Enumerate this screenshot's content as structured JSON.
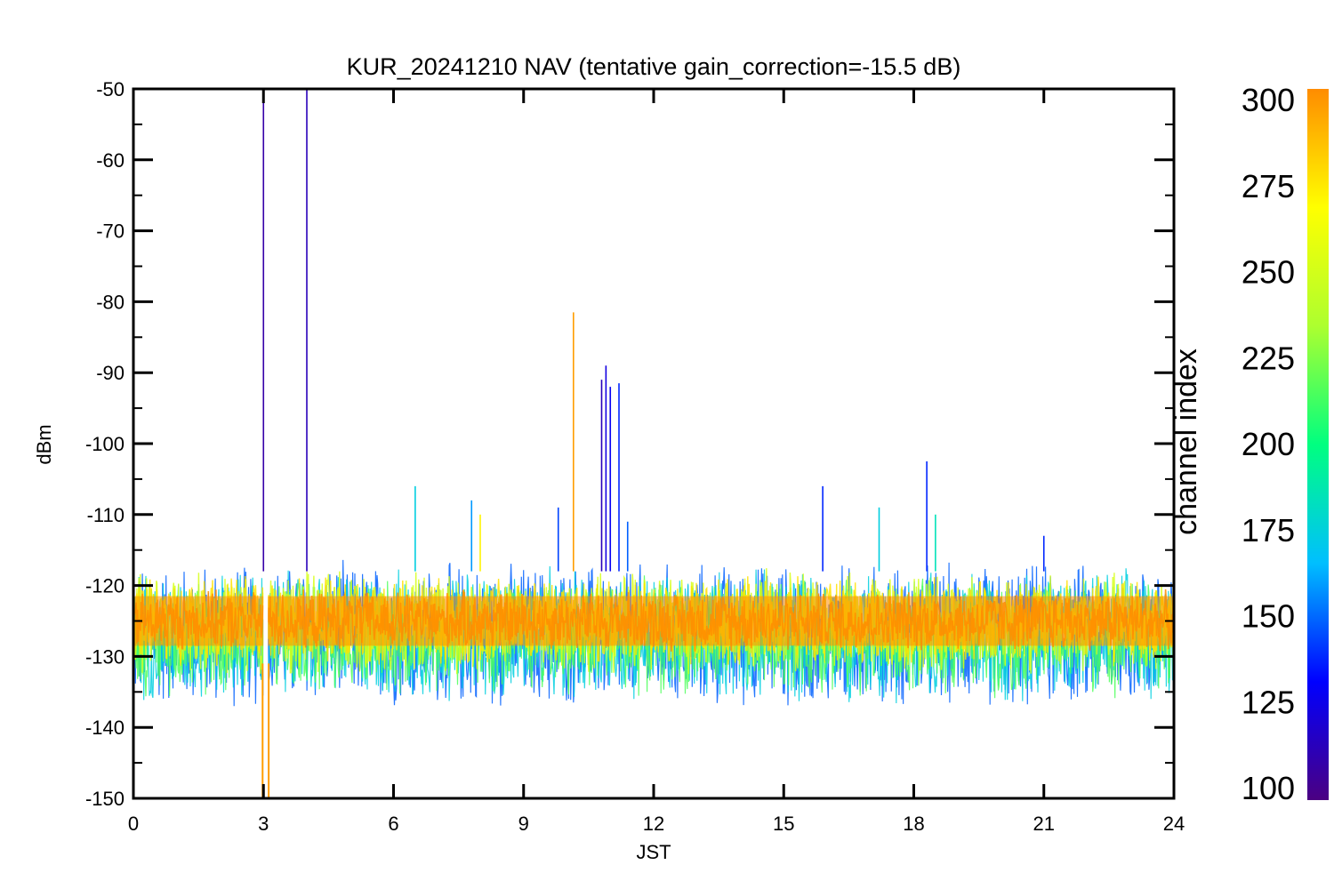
{
  "chart_data": {
    "type": "line",
    "title": "KUR_20241210 NAV (tentative gain_correction=-15.5 dB)",
    "xlabel": "JST",
    "ylabel": "dBm",
    "xlim": [
      0,
      24
    ],
    "ylim": [
      -150,
      -50
    ],
    "x_ticks": [
      "0",
      "3",
      "6",
      "9",
      "12",
      "15",
      "18",
      "21",
      "24"
    ],
    "y_ticks": [
      "-50",
      "-60",
      "-70",
      "-80",
      "-90",
      "-100",
      "-110",
      "-120",
      "-130",
      "-140",
      "-150"
    ],
    "colorbar": {
      "label": "channel index",
      "range": [
        100,
        300
      ],
      "ticks": [
        "300",
        "275",
        "250",
        "225",
        "200",
        "175",
        "150",
        "125",
        "100"
      ],
      "colormap": [
        "#4b0082",
        "#0000ff",
        "#00bfff",
        "#00ff80",
        "#adff2f",
        "#ffff00",
        "#ff8c00"
      ]
    },
    "noise_band": {
      "core_dbm": [
        -130,
        -120
      ],
      "outer_dbm": [
        -138,
        -116
      ],
      "channel_color_order": "channel 150 at the band edges, channel 300 at the center"
    },
    "gap": {
      "x": [
        3.0,
        3.1
      ]
    },
    "spikes": [
      {
        "x": 3.0,
        "peak": -50,
        "channel": 110
      },
      {
        "x": 4.0,
        "peak": -50,
        "channel": 115
      },
      {
        "x": 6.5,
        "peak": -106,
        "channel": 175
      },
      {
        "x": 7.8,
        "peak": -108,
        "channel": 160
      },
      {
        "x": 8.0,
        "peak": -110,
        "channel": 270
      },
      {
        "x": 9.8,
        "peak": -109,
        "channel": 145
      },
      {
        "x": 10.15,
        "peak": -81.5,
        "channel": 295
      },
      {
        "x": 10.8,
        "peak": -91,
        "channel": 115
      },
      {
        "x": 10.9,
        "peak": -89,
        "channel": 125
      },
      {
        "x": 11.0,
        "peak": -92,
        "channel": 130
      },
      {
        "x": 11.2,
        "peak": -91.5,
        "channel": 140
      },
      {
        "x": 11.4,
        "peak": -111,
        "channel": 150
      },
      {
        "x": 15.9,
        "peak": -106,
        "channel": 140
      },
      {
        "x": 17.2,
        "peak": -109,
        "channel": 175
      },
      {
        "x": 18.3,
        "peak": -102.5,
        "channel": 140
      },
      {
        "x": 18.5,
        "peak": -110,
        "channel": 185
      },
      {
        "x": 21.0,
        "peak": -113,
        "channel": 140
      }
    ]
  }
}
